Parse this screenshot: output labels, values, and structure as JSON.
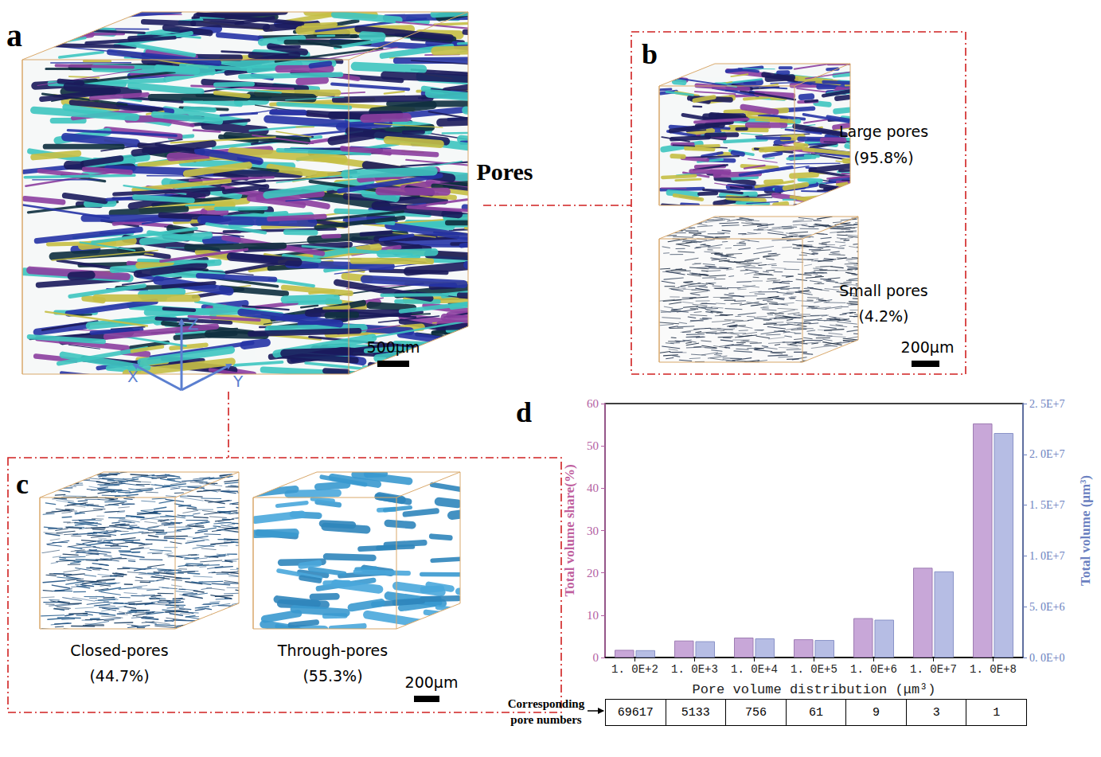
{
  "panels": [
    {
      "letter": "a",
      "axes": {
        "x": "X",
        "y": "Y",
        "z": "Z"
      },
      "scale_bar": "500μm"
    },
    {
      "letter": "b",
      "heading": "Pores",
      "items": [
        {
          "label": "Large pores",
          "share": "(95.8%)"
        },
        {
          "label": "Small pores",
          "share": "(4.2%)"
        }
      ],
      "scale_bar": "200μm"
    },
    {
      "letter": "c",
      "items": [
        {
          "label": "Closed-pores",
          "share": "(44.7%)"
        },
        {
          "label": "Through-pores",
          "share": "(55.3%)"
        }
      ],
      "scale_bar": "200μm"
    }
  ],
  "chart_data": {
    "type": "bar",
    "letter": "d",
    "xlabel": "Pore volume distribution (μm³)",
    "categories": [
      "1. 0E+2",
      "1. 0E+3",
      "1. 0E+4",
      "1. 0E+5",
      "1. 0E+6",
      "1. 0E+7",
      "1. 0E+8"
    ],
    "ylabel": "Total volume share(%)",
    "ylim": [
      0,
      60
    ],
    "yticks": [
      0,
      10,
      20,
      30,
      40,
      50,
      60
    ],
    "y2label": "Total volume (μm³)",
    "y2lim": [
      0,
      25000000
    ],
    "y2ticks": [
      {
        "value": 0,
        "label": "0. 0E+0"
      },
      {
        "value": 5000000,
        "label": "5. 0E+6"
      },
      {
        "value": 10000000,
        "label": "1. 0E+7"
      },
      {
        "value": 15000000,
        "label": "1. 5E+7"
      },
      {
        "value": 20000000,
        "label": "2. 0E+7"
      },
      {
        "value": 25000000,
        "label": "2. 5E+7"
      }
    ],
    "series": [
      {
        "color": "#c8a7d8",
        "values": [
          1.8,
          4.0,
          4.7,
          4.3,
          9.3,
          21.2,
          55.3
        ]
      },
      {
        "color": "#b6bde4",
        "axis": "y2",
        "values": [
          720000,
          1600000,
          1880000,
          1720000,
          3720000,
          8480000,
          22100000
        ]
      }
    ],
    "grid": false,
    "table": {
      "header": "Corresponding pore numbers",
      "values": [
        69617,
        5133,
        756,
        61,
        9,
        3,
        1
      ]
    }
  }
}
